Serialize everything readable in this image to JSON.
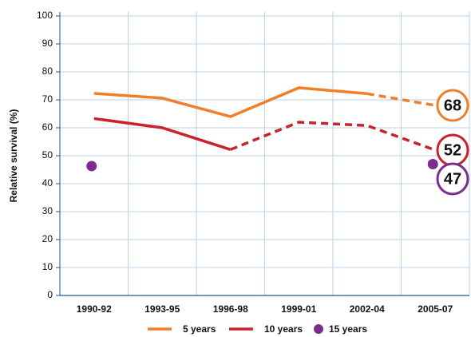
{
  "chart_data": {
    "type": "line",
    "y_label": "Relative survival (%)",
    "categories": [
      "1990-92",
      "1993-95",
      "1996-98",
      "1999-01",
      "2002-04",
      "2005-07"
    ],
    "series": [
      {
        "name": "5 years",
        "color": "#f07f2a",
        "values": [
          72.3,
          70.6,
          64,
          74.3,
          72.2,
          68
        ],
        "dashed_from": 4,
        "lines": true,
        "end_label": true
      },
      {
        "name": "10 years",
        "color": "#c8232c",
        "values": [
          63.3,
          60,
          52.2,
          62,
          60.8,
          52
        ],
        "dashed_from": 2,
        "lines": true,
        "end_label": true
      },
      {
        "name": "15 years",
        "color": "#7b2c8e",
        "values": [
          46.3,
          null,
          null,
          null,
          null,
          47
        ],
        "lines": false,
        "end_label": true
      }
    ],
    "ylim": [
      0,
      100
    ],
    "yticks": [
      0,
      10,
      20,
      30,
      40,
      50,
      60,
      70,
      80,
      90,
      100
    ],
    "grid": true
  }
}
